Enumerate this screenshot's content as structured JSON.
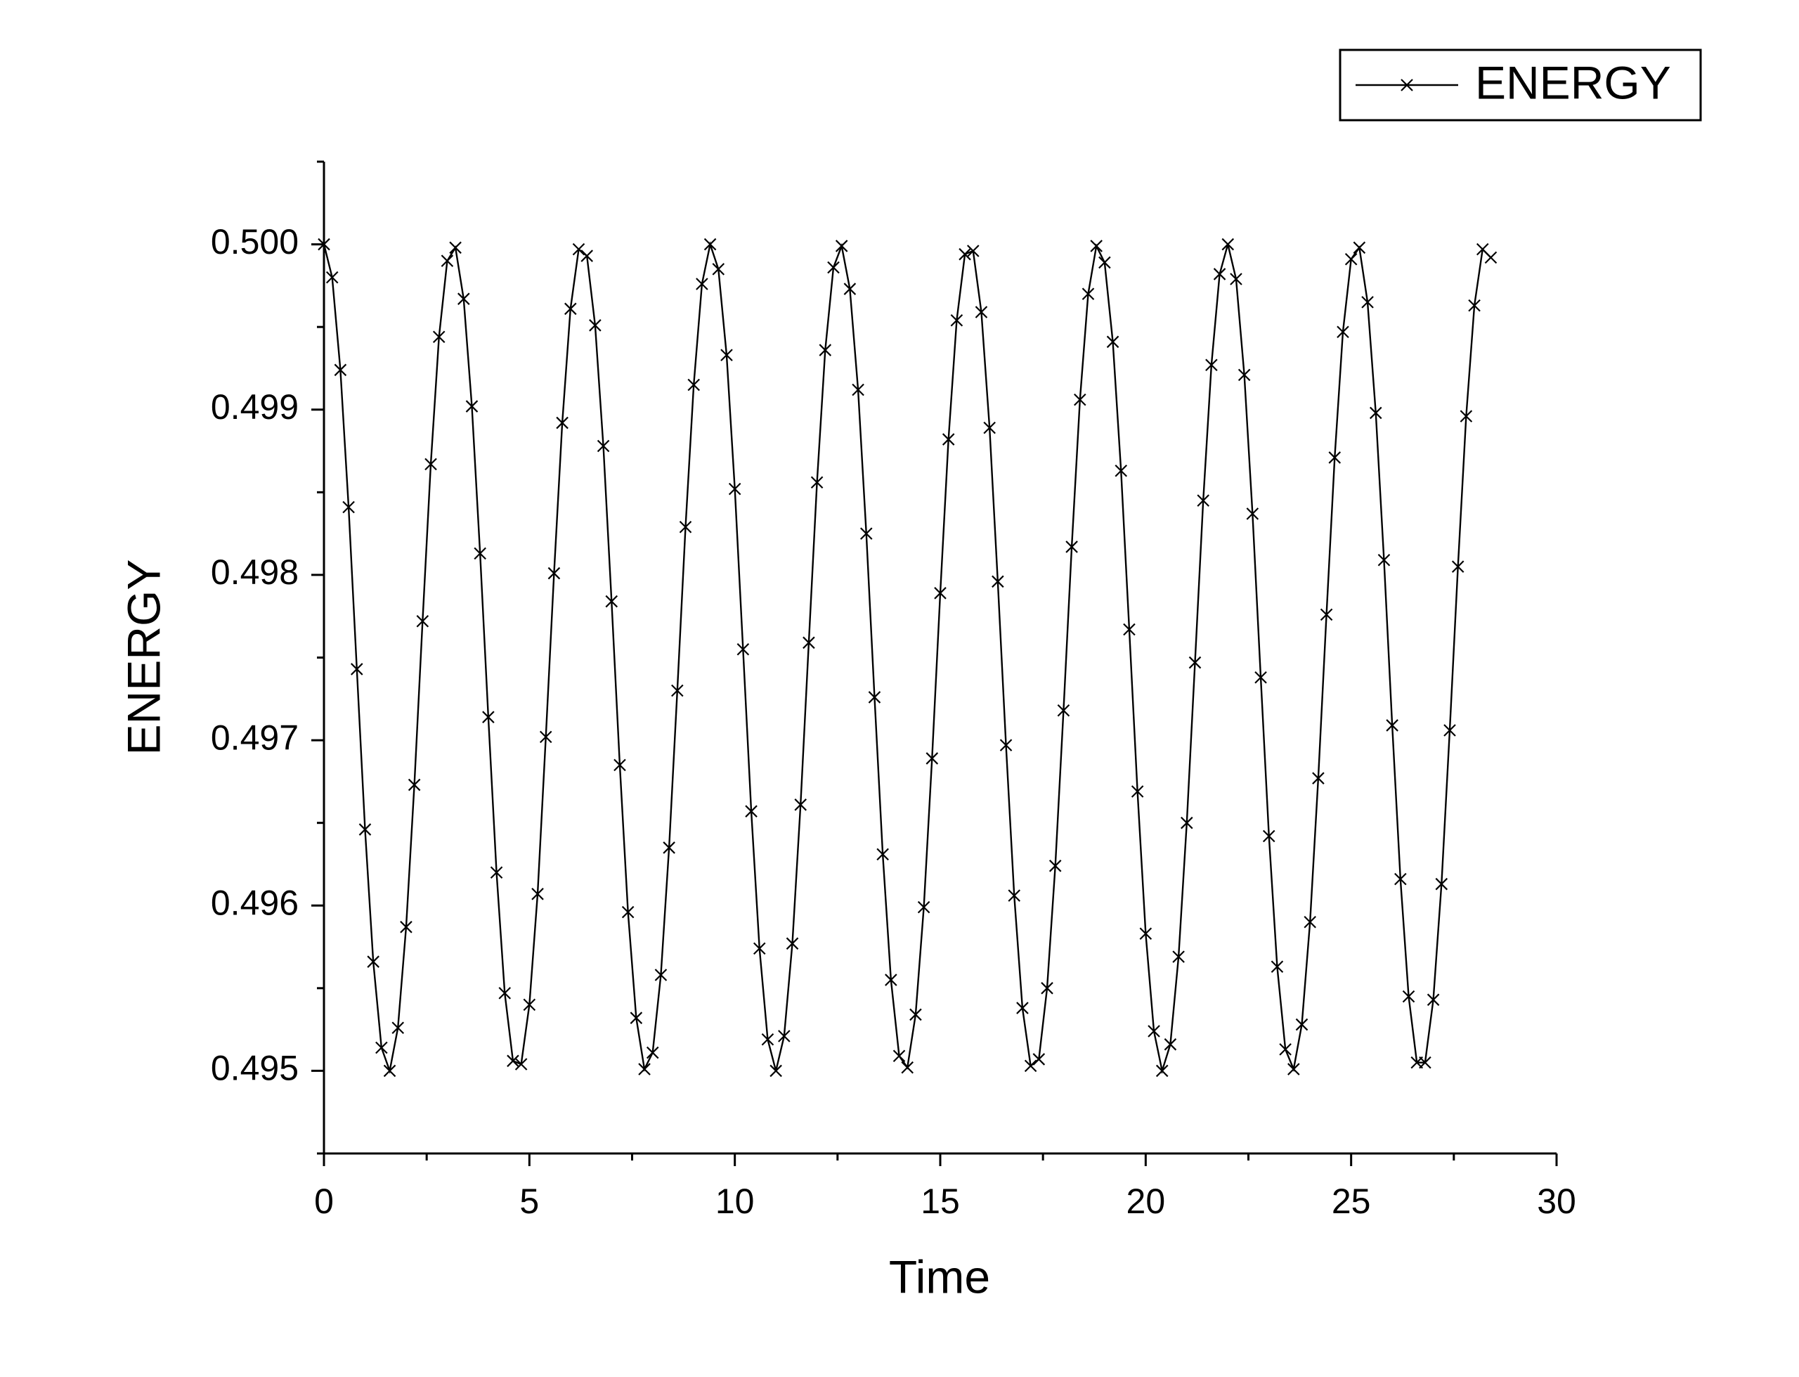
{
  "chart_data": {
    "type": "line",
    "x_label": "Time",
    "y_label": "ENERGY",
    "legend": "upper right",
    "xlim": [
      0,
      30
    ],
    "xticks": [
      0,
      5,
      10,
      15,
      20,
      25,
      30
    ],
    "ylim": [
      0.4945,
      0.5005
    ],
    "yticks": [
      0.495,
      0.496,
      0.497,
      0.498,
      0.499,
      {
        "value": 0.5,
        "label": "0.500"
      }
    ],
    "x": [
      0,
      0.2,
      0.4,
      0.6,
      0.8,
      1,
      1.2,
      1.4,
      1.6,
      1.8,
      2,
      2.2,
      2.4,
      2.6,
      2.8,
      3,
      3.2,
      3.4,
      3.6,
      3.8,
      4,
      4.2,
      4.4,
      4.6,
      4.8,
      5,
      5.2,
      5.4,
      5.6,
      5.8,
      6,
      6.2,
      6.4,
      6.6,
      6.8,
      7,
      7.2,
      7.4,
      7.6,
      7.8,
      8,
      8.2,
      8.4,
      8.6,
      8.8,
      9,
      9.2,
      9.4,
      9.6,
      9.8,
      10,
      10.2,
      10.4,
      10.6,
      10.8,
      11,
      11.2,
      11.4,
      11.6,
      11.8,
      12,
      12.2,
      12.4,
      12.6,
      12.8,
      13,
      13.2,
      13.4,
      13.6,
      13.8,
      14,
      14.2,
      14.4,
      14.6,
      14.8,
      15,
      15.2,
      15.4,
      15.6,
      15.8,
      16,
      16.2,
      16.4,
      16.6,
      16.8,
      17,
      17.2,
      17.4,
      17.6,
      17.8,
      18,
      18.2,
      18.4,
      18.6,
      18.8,
      19,
      19.2,
      19.4,
      19.6,
      19.8,
      20,
      20.2,
      20.4,
      20.6,
      20.8,
      21,
      21.2,
      21.4,
      21.6,
      21.8,
      22,
      22.2,
      22.4,
      22.6,
      22.8,
      23,
      23.2,
      23.4,
      23.6,
      23.8,
      24,
      24.2,
      24.4,
      24.6,
      24.8,
      25,
      25.2,
      25.4,
      25.6,
      25.8,
      26,
      26.2,
      26.4,
      26.6,
      26.8,
      27,
      27.2,
      27.4,
      27.6,
      27.8,
      28,
      28.2,
      28.4
    ],
    "series": [
      {
        "name": "ENERGY",
        "color": "#000000",
        "marker": "x",
        "values": [
          0.5,
          0.4998,
          0.49924,
          0.49841,
          0.49743,
          0.49646,
          0.49566,
          0.49514,
          0.495,
          0.49526,
          0.49587,
          0.49673,
          0.49772,
          0.49867,
          0.49944,
          0.4999,
          0.49998,
          0.49967,
          0.49902,
          0.49813,
          0.49714,
          0.4962,
          0.49547,
          0.49506,
          0.49504,
          0.4954,
          0.49607,
          0.49702,
          0.49801,
          0.49892,
          0.49961,
          0.49997,
          0.49993,
          0.49951,
          0.49878,
          0.49784,
          0.49685,
          0.49596,
          0.49532,
          0.49501,
          0.49511,
          0.49558,
          0.49635,
          0.4973,
          0.49829,
          0.49915,
          0.49976,
          0.5,
          0.49985,
          0.49933,
          0.49852,
          0.49755,
          0.49657,
          0.49574,
          0.49519,
          0.495,
          0.49521,
          0.49577,
          0.49661,
          0.49759,
          0.49856,
          0.49936,
          0.49986,
          0.49999,
          0.49973,
          0.49912,
          0.49825,
          0.49726,
          0.49631,
          0.49555,
          0.49509,
          0.49502,
          0.49534,
          0.49599,
          0.49689,
          0.49789,
          0.49882,
          0.49954,
          0.49994,
          0.49996,
          0.49959,
          0.49889,
          0.49796,
          0.49697,
          0.49606,
          0.49538,
          0.49503,
          0.49507,
          0.4955,
          0.49624,
          0.49718,
          0.49817,
          0.49906,
          0.4997,
          0.49999,
          0.49989,
          0.49941,
          0.49863,
          0.49767,
          0.49669,
          0.49583,
          0.49524,
          0.495,
          0.49516,
          0.49569,
          0.4965,
          0.49747,
          0.49845,
          0.49927,
          0.49982,
          0.5,
          0.49979,
          0.49921,
          0.49837,
          0.49738,
          0.49642,
          0.49563,
          0.49513,
          0.49501,
          0.49528,
          0.4959,
          0.49677,
          0.49776,
          0.49871,
          0.49947,
          0.49991,
          0.49998,
          0.49965,
          0.49898,
          0.49809,
          0.49709,
          0.49616,
          0.49545,
          0.49505,
          0.49505,
          0.49543,
          0.49613,
          0.49706,
          0.49805,
          0.49896,
          0.49963,
          0.49997,
          0.49992
        ]
      }
    ]
  }
}
